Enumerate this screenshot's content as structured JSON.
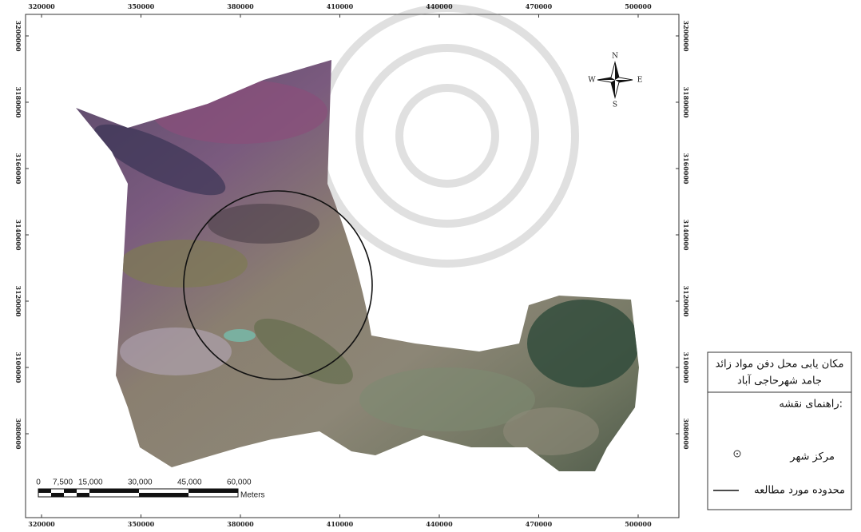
{
  "map": {
    "frame": {
      "xlim": [
        315180,
        512290
      ],
      "ylim": [
        3054700,
        3206500
      ]
    },
    "xticks": [
      320000,
      350000,
      380000,
      410000,
      440000,
      470000,
      500000
    ],
    "yticks": [
      3200000,
      3180000,
      3160000,
      3140000,
      3120000,
      3100000,
      3080000
    ],
    "compass": {
      "n": "N",
      "s": "S",
      "e": "E",
      "w": "W"
    },
    "scale_bar": {
      "labels": [
        "0",
        "7,500",
        "15,000",
        "30,000",
        "45,000",
        "60,000"
      ],
      "unit": "Meters"
    },
    "legend": {
      "title_lines": [
        "مکان یابی محل دفن مواد زائد",
        "جامد شهرحاجی آباد"
      ],
      "heading": "راهنمای نقشه:",
      "items": [
        "مرکز شهر",
        "محدوده مورد مطالعه"
      ]
    }
  }
}
